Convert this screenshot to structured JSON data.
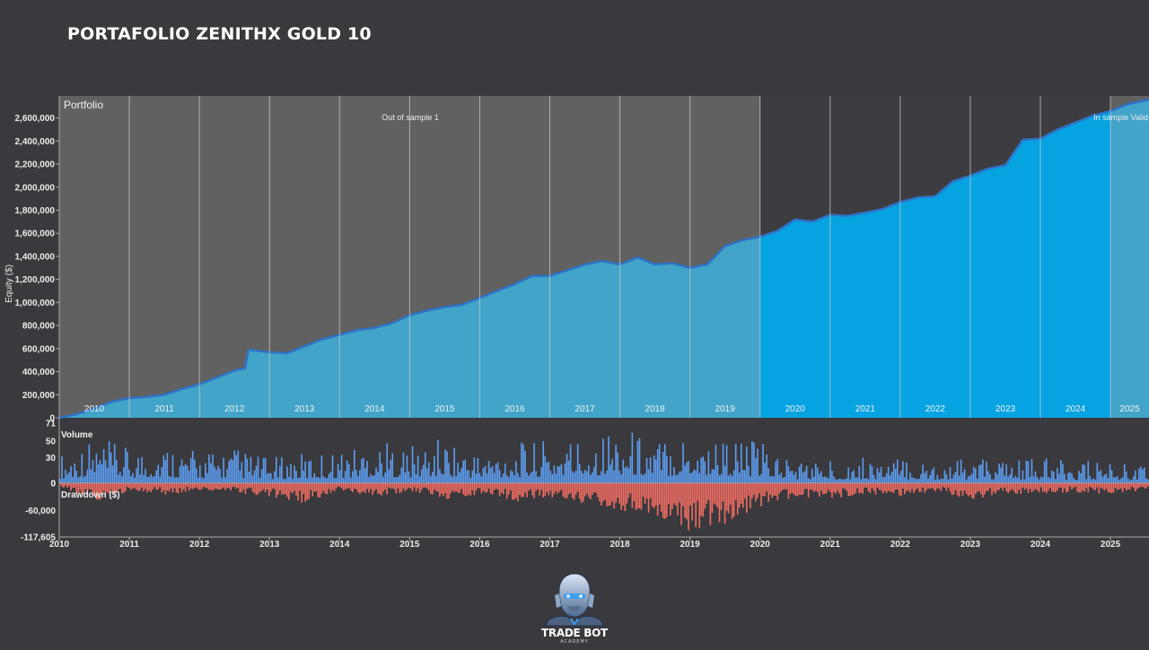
{
  "page": {
    "title": "PORTAFOLIO ZENITHX GOLD 10"
  },
  "logo": {
    "line1": "TRADE BOT",
    "line2": "ACADEMY"
  },
  "colors": {
    "background": "#3a393d",
    "oos_shade": "#616161",
    "oos_fill": "#41a4c8",
    "is_fill": "#06a3e2",
    "equity_line": "#2f72c6",
    "volume": "#5c9ef2",
    "drawdown": "#f26d62"
  },
  "chart_data": [
    {
      "type": "area",
      "title": "Portfolio",
      "ylabel": "Equity ($)",
      "ylim": [
        0,
        2760000
      ],
      "yticks": [
        0,
        200000,
        400000,
        600000,
        800000,
        1000000,
        1200000,
        1400000,
        1600000,
        1800000,
        2000000,
        2200000,
        2400000,
        2600000
      ],
      "ytick_labels": [
        "0",
        "200,000",
        "400,000",
        "600,000",
        "800,000",
        "1,000,000",
        "1,200,000",
        "1,400,000",
        "1,600,000",
        "1,800,000",
        "2,000,000",
        "2,200,000",
        "2,400,000",
        "2,600,000"
      ],
      "period_labels": [
        "2010",
        "2011",
        "2012",
        "2013",
        "2014",
        "2015",
        "2016",
        "2017",
        "2018",
        "2019",
        "2020",
        "2021",
        "2022",
        "2023",
        "2024",
        "2025"
      ],
      "regions": [
        {
          "label": "Out of sample 1",
          "start": 2010.0,
          "end": 2020.0
        },
        {
          "label": "In sample Valid",
          "start": 2025.0,
          "end": 2025.55
        }
      ],
      "x": [
        2010.0,
        2010.25,
        2010.5,
        2010.75,
        2011.0,
        2011.25,
        2011.5,
        2011.75,
        2012.0,
        2012.25,
        2012.5,
        2012.65,
        2012.7,
        2013.0,
        2013.25,
        2013.5,
        2013.75,
        2014.0,
        2014.25,
        2014.5,
        2014.75,
        2015.0,
        2015.25,
        2015.5,
        2015.75,
        2016.0,
        2016.25,
        2016.5,
        2016.75,
        2017.0,
        2017.25,
        2017.5,
        2017.75,
        2018.0,
        2018.25,
        2018.5,
        2018.75,
        2019.0,
        2019.25,
        2019.5,
        2019.75,
        2020.0,
        2020.25,
        2020.5,
        2020.75,
        2021.0,
        2021.25,
        2021.5,
        2021.75,
        2022.0,
        2022.25,
        2022.5,
        2022.75,
        2023.0,
        2023.25,
        2023.5,
        2023.75,
        2024.0,
        2024.25,
        2024.5,
        2024.75,
        2025.0,
        2025.25,
        2025.55
      ],
      "y": [
        0,
        30000,
        80000,
        140000,
        170000,
        180000,
        200000,
        250000,
        290000,
        350000,
        410000,
        430000,
        590000,
        570000,
        560000,
        620000,
        680000,
        720000,
        760000,
        780000,
        820000,
        890000,
        930000,
        960000,
        980000,
        1040000,
        1100000,
        1160000,
        1230000,
        1230000,
        1280000,
        1330000,
        1360000,
        1330000,
        1390000,
        1330000,
        1340000,
        1300000,
        1330000,
        1490000,
        1540000,
        1570000,
        1620000,
        1720000,
        1700000,
        1760000,
        1750000,
        1780000,
        1810000,
        1870000,
        1910000,
        1920000,
        2050000,
        2100000,
        2160000,
        2190000,
        2410000,
        2420000,
        2500000,
        2560000,
        2620000,
        2660000,
        2720000,
        2760000
      ]
    },
    {
      "type": "bar",
      "title": "Volume",
      "ylim": [
        0,
        71
      ],
      "yticks": [
        0,
        30,
        50,
        71
      ],
      "ytick_labels": [
        "0",
        "30",
        "50",
        "71"
      ],
      "x": [
        2010.0,
        2010.5,
        2011.0,
        2011.5,
        2012.0,
        2012.5,
        2013.0,
        2013.5,
        2014.0,
        2014.5,
        2015.0,
        2015.5,
        2016.0,
        2016.5,
        2017.0,
        2017.5,
        2018.0,
        2018.5,
        2019.0,
        2019.5,
        2020.0,
        2020.5,
        2021.0,
        2021.5,
        2022.0,
        2022.5,
        2023.0,
        2023.5,
        2024.0,
        2024.5,
        2025.0,
        2025.5
      ],
      "values": [
        35,
        55,
        42,
        50,
        38,
        44,
        30,
        36,
        40,
        52,
        45,
        56,
        38,
        48,
        52,
        60,
        70,
        55,
        65,
        58,
        50,
        30,
        28,
        32,
        30,
        27,
        30,
        28,
        30,
        26,
        28,
        22
      ]
    },
    {
      "type": "bar",
      "title": "Drawdown ($)",
      "ylim": [
        -117605,
        0
      ],
      "yticks": [
        0,
        -60000,
        -117605
      ],
      "ytick_labels": [
        "0",
        "-60,000",
        "-117,605"
      ],
      "x": [
        2010.0,
        2010.5,
        2011.0,
        2011.5,
        2012.0,
        2012.5,
        2013.0,
        2013.5,
        2014.0,
        2014.5,
        2015.0,
        2015.5,
        2016.0,
        2016.5,
        2017.0,
        2017.5,
        2018.0,
        2018.5,
        2019.0,
        2019.5,
        2020.0,
        2020.5,
        2021.0,
        2021.5,
        2022.0,
        2022.5,
        2023.0,
        2023.5,
        2024.0,
        2024.5,
        2025.0,
        2025.5
      ],
      "values": [
        -8000,
        -40000,
        -20000,
        -25000,
        -18000,
        -22000,
        -30000,
        -45000,
        -15000,
        -30000,
        -20000,
        -35000,
        -25000,
        -40000,
        -30000,
        -45000,
        -60000,
        -70000,
        -110000,
        -90000,
        -55000,
        -30000,
        -35000,
        -25000,
        -30000,
        -20000,
        -35000,
        -25000,
        -22000,
        -20000,
        -25000,
        -15000
      ]
    }
  ],
  "x_axis": {
    "xlim": [
      2010.0,
      2025.55
    ],
    "ticks": [
      2010,
      2011,
      2012,
      2013,
      2014,
      2015,
      2016,
      2017,
      2018,
      2019,
      2020,
      2021,
      2022,
      2023,
      2024,
      2025
    ],
    "tick_labels": [
      "2010",
      "2011",
      "2012",
      "2013",
      "2014",
      "2015",
      "2016",
      "2017",
      "2018",
      "2019",
      "2020",
      "2021",
      "2022",
      "2023",
      "2024",
      "2025"
    ]
  }
}
